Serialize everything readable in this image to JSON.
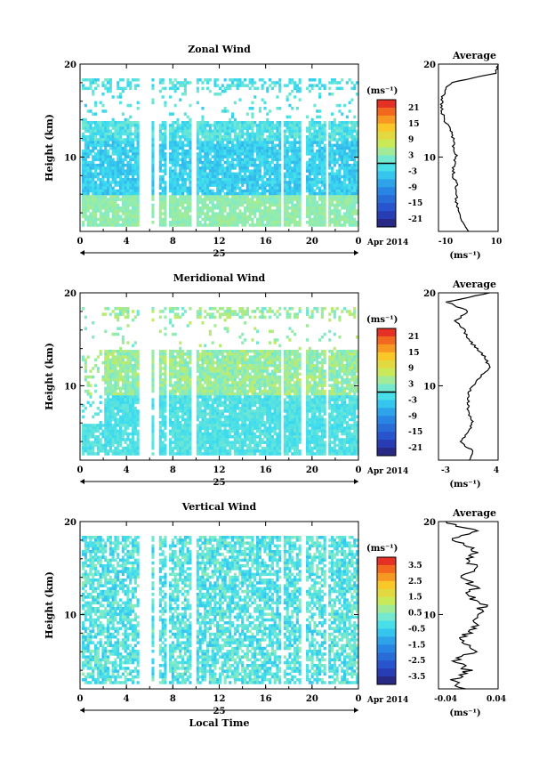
{
  "chart_data": [
    {
      "type": "heatmap",
      "title": "Zonal Wind",
      "ylabel": "Height (km)",
      "ylim": [
        2,
        20
      ],
      "xlim": [
        0,
        24
      ],
      "x_ticks": [
        "0",
        "4",
        "8",
        "12",
        "16",
        "20",
        "0"
      ],
      "y_ticks": [
        "10",
        "20"
      ],
      "date_label": "25",
      "month_label": "Apr 2014",
      "colorbar": {
        "unit": "(ms⁻¹)",
        "range": [
          -24,
          24
        ],
        "ticks": [
          "21",
          "15",
          "9",
          "3",
          "-3",
          "-9",
          "-15",
          "-21"
        ],
        "zero_line": true
      },
      "field_range": [
        -10,
        6
      ],
      "average": {
        "title": "Average",
        "xlabel": "(ms⁻¹)",
        "xlim": [
          -10,
          10
        ],
        "x_ticks": [
          "-10",
          "10"
        ],
        "y_ticks": [
          "10",
          "20"
        ],
        "heights": [
          2,
          3,
          4,
          5,
          6,
          7,
          8,
          9,
          10,
          11,
          12,
          13,
          14,
          15,
          16,
          17,
          18,
          19,
          20
        ],
        "values": [
          0,
          -2,
          -3,
          -4,
          -4,
          -4,
          -5,
          -5,
          -4,
          -5,
          -5,
          -6,
          -8,
          -9,
          -9,
          -8,
          -6,
          9,
          10
        ]
      }
    },
    {
      "type": "heatmap",
      "title": "Meridional Wind",
      "ylabel": "Height (km)",
      "ylim": [
        2,
        20
      ],
      "xlim": [
        0,
        24
      ],
      "x_ticks": [
        "0",
        "4",
        "8",
        "12",
        "16",
        "20",
        "0"
      ],
      "y_ticks": [
        "10",
        "20"
      ],
      "date_label": "25",
      "month_label": "Apr 2014",
      "colorbar": {
        "unit": "(ms⁻¹)",
        "range": [
          -24,
          24
        ],
        "ticks": [
          "21",
          "15",
          "9",
          "3",
          "-3",
          "-9",
          "-15",
          "-21"
        ],
        "zero_line": true
      },
      "field_range": [
        -5,
        8
      ],
      "average": {
        "title": "Average",
        "xlabel": "(ms⁻¹)",
        "xlim": [
          -3,
          4
        ],
        "x_ticks": [
          "-3",
          "4"
        ],
        "y_ticks": [
          "10",
          "20"
        ],
        "heights": [
          2,
          3,
          4,
          5,
          6,
          7,
          8,
          9,
          10,
          11,
          12,
          13,
          14,
          15,
          16,
          17,
          18,
          19,
          20
        ],
        "values": [
          0.5,
          1.0,
          -0.5,
          0.5,
          1.0,
          0.5,
          0.5,
          0.5,
          1.0,
          2.0,
          3.0,
          2.5,
          1.5,
          0.5,
          0.0,
          -1.0,
          0.5,
          -2.0,
          3.0
        ]
      }
    },
    {
      "type": "heatmap",
      "title": "Vertical Wind",
      "ylabel": "Height (km)",
      "xlabel": "Local Time",
      "ylim": [
        2,
        20
      ],
      "xlim": [
        0,
        24
      ],
      "x_ticks": [
        "0",
        "4",
        "8",
        "12",
        "16",
        "20",
        "0"
      ],
      "y_ticks": [
        "10",
        "20"
      ],
      "date_label": "25",
      "month_label": "Apr 2014",
      "colorbar": {
        "unit": "(ms⁻¹)",
        "range": [
          -4,
          4
        ],
        "ticks": [
          "3.5",
          "2.5",
          "1.5",
          "0.5",
          "-0.5",
          "-1.5",
          "-2.5",
          "-3.5"
        ],
        "zero_line": false
      },
      "field_range": [
        -1.0,
        1.0
      ],
      "average": {
        "title": "Average",
        "xlabel": "(ms⁻¹)",
        "xlim": [
          -0.04,
          0.04
        ],
        "x_ticks": [
          "-0.04",
          "0.04"
        ],
        "y_ticks": [
          "10",
          "20"
        ],
        "heights": [
          2,
          3,
          4,
          5,
          6,
          7,
          8,
          9,
          10,
          11,
          12,
          13,
          14,
          15,
          16,
          17,
          18,
          19,
          20
        ],
        "values": [
          -0.01,
          -0.02,
          0.0,
          -0.02,
          0.01,
          -0.01,
          0.0,
          0.01,
          0.01,
          0.02,
          0.0,
          0.01,
          -0.01,
          0.01,
          0.0,
          0.01,
          -0.02,
          0.01,
          -0.03
        ]
      }
    }
  ]
}
